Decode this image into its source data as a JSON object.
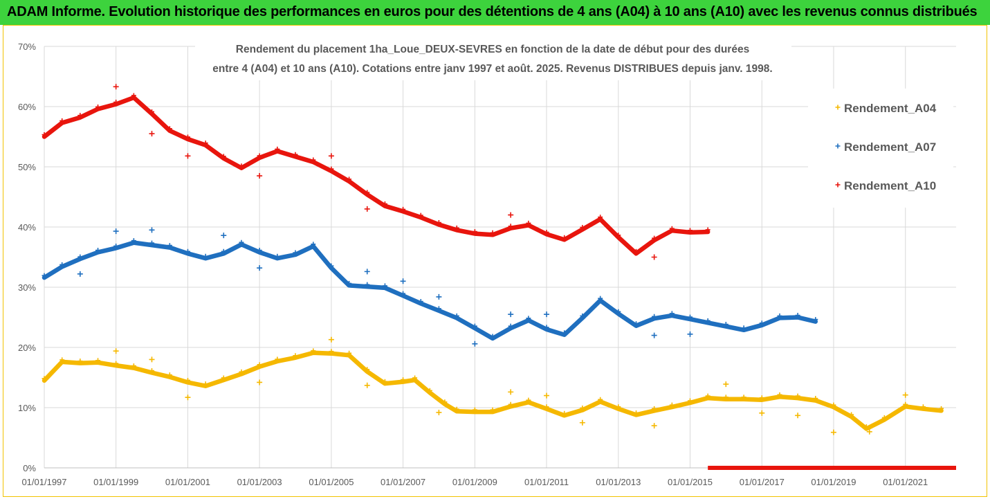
{
  "banner": {
    "title": "ADAM Informe. Evolution historique des performances en euros pour des détentions de 4 ans (A04) à 10 ans (A10) avec les revenus connus distribués"
  },
  "colors": {
    "banner": "#3dd33d",
    "frame": "#f2c200",
    "a04": "#f5b800",
    "a07": "#1f6fbf",
    "a10": "#e8150d",
    "grid": "#d9d9d9"
  },
  "chart_data": {
    "type": "scatter",
    "title": "Rendement du placement 1ha_Loue_DEUX-SEVRES en fonction de la date de début pour des durées",
    "subtitle": "entre 4 (A04) et 10 ans (A10). Cotations entre janv 1997 et août. 2025. Revenus DISTRIBUES depuis janv. 1998.",
    "xlabel": "",
    "ylabel": "",
    "x_unit": "date",
    "xlim": [
      "1997-01-01",
      "2022-06-01"
    ],
    "ylim": [
      0,
      70
    ],
    "y_ticks": [
      0,
      10,
      20,
      30,
      40,
      50,
      60,
      70
    ],
    "y_tick_labels": [
      "0%",
      "10%",
      "20%",
      "30%",
      "40%",
      "50%",
      "60%",
      "70%"
    ],
    "x_ticks": [
      "1997-01-01",
      "1999-01-01",
      "2001-01-01",
      "2003-01-01",
      "2005-01-01",
      "2007-01-01",
      "2009-01-01",
      "2011-01-01",
      "2013-01-01",
      "2015-01-01",
      "2017-01-01",
      "2019-01-01",
      "2021-01-01"
    ],
    "x_tick_labels": [
      "01/01/1997",
      "01/01/1999",
      "01/01/2001",
      "01/01/2003",
      "01/01/2005",
      "01/01/2007",
      "01/01/2009",
      "01/01/2011",
      "01/01/2013",
      "01/01/2015",
      "01/01/2017",
      "01/01/2019",
      "01/01/2021"
    ],
    "grid": true,
    "legend_position": "right",
    "series": [
      {
        "name": "Rendement_A04",
        "color": "#f5b800",
        "points": [
          [
            "1997-01-01",
            14.5
          ],
          [
            "1997-07-01",
            17.6
          ],
          [
            "1998-01-01",
            17.4
          ],
          [
            "1998-07-01",
            17.5
          ],
          [
            "1999-01-01",
            17.0
          ],
          [
            "1999-07-01",
            16.6
          ],
          [
            "2000-01-01",
            15.8
          ],
          [
            "2000-07-01",
            15.1
          ],
          [
            "2001-01-01",
            14.2
          ],
          [
            "2001-07-01",
            13.6
          ],
          [
            "2002-01-01",
            14.6
          ],
          [
            "2002-07-01",
            15.6
          ],
          [
            "2003-01-01",
            16.8
          ],
          [
            "2003-07-01",
            17.7
          ],
          [
            "2004-01-01",
            18.3
          ],
          [
            "2004-07-01",
            19.1
          ],
          [
            "2005-01-01",
            19.0
          ],
          [
            "2005-07-01",
            18.7
          ],
          [
            "2006-01-01",
            16.0
          ],
          [
            "2006-07-01",
            14.0
          ],
          [
            "2007-01-01",
            14.3
          ],
          [
            "2007-05-01",
            14.6
          ],
          [
            "2007-10-01",
            12.5
          ],
          [
            "2008-03-01",
            10.6
          ],
          [
            "2008-07-01",
            9.4
          ],
          [
            "2009-01-01",
            9.3
          ],
          [
            "2009-07-01",
            9.3
          ],
          [
            "2010-01-01",
            10.2
          ],
          [
            "2010-07-01",
            10.9
          ],
          [
            "2011-01-01",
            9.8
          ],
          [
            "2011-07-01",
            8.7
          ],
          [
            "2012-01-01",
            9.6
          ],
          [
            "2012-07-01",
            11.0
          ],
          [
            "2013-01-01",
            9.8
          ],
          [
            "2013-07-01",
            8.8
          ],
          [
            "2014-01-01",
            9.5
          ],
          [
            "2014-07-01",
            10.1
          ],
          [
            "2015-01-01",
            10.8
          ],
          [
            "2015-07-01",
            11.6
          ],
          [
            "2016-01-01",
            11.4
          ],
          [
            "2016-07-01",
            11.4
          ],
          [
            "2017-01-01",
            11.3
          ],
          [
            "2017-07-01",
            11.8
          ],
          [
            "2018-01-01",
            11.6
          ],
          [
            "2018-07-01",
            11.2
          ],
          [
            "2019-01-01",
            10.1
          ],
          [
            "2019-07-01",
            8.5
          ],
          [
            "2019-12-01",
            6.5
          ],
          [
            "2020-06-01",
            8.0
          ],
          [
            "2021-01-01",
            10.2
          ],
          [
            "2021-07-01",
            9.8
          ],
          [
            "2022-01-01",
            9.5
          ]
        ],
        "outliers": [
          [
            "1999-01-01",
            19.4
          ],
          [
            "2000-01-01",
            18.0
          ],
          [
            "2001-01-01",
            11.7
          ],
          [
            "2003-01-01",
            14.2
          ],
          [
            "2005-01-01",
            21.3
          ],
          [
            "2006-01-01",
            13.7
          ],
          [
            "2008-01-01",
            9.2
          ],
          [
            "2010-01-01",
            12.6
          ],
          [
            "2011-01-01",
            12.0
          ],
          [
            "2012-01-01",
            7.5
          ],
          [
            "2014-01-01",
            7.0
          ],
          [
            "2016-01-01",
            13.9
          ],
          [
            "2017-01-01",
            9.1
          ],
          [
            "2018-01-01",
            8.7
          ],
          [
            "2019-01-01",
            5.9
          ],
          [
            "2020-01-01",
            6.0
          ],
          [
            "2021-01-01",
            12.1
          ]
        ]
      },
      {
        "name": "Rendement_A07",
        "color": "#1f6fbf",
        "points": [
          [
            "1997-01-01",
            31.6
          ],
          [
            "1997-07-01",
            33.4
          ],
          [
            "1998-01-01",
            34.7
          ],
          [
            "1998-07-01",
            35.8
          ],
          [
            "1999-01-01",
            36.5
          ],
          [
            "1999-07-01",
            37.4
          ],
          [
            "2000-01-01",
            37.0
          ],
          [
            "2000-07-01",
            36.6
          ],
          [
            "2001-01-01",
            35.6
          ],
          [
            "2001-07-01",
            34.8
          ],
          [
            "2002-01-01",
            35.6
          ],
          [
            "2002-07-01",
            37.1
          ],
          [
            "2003-01-01",
            35.8
          ],
          [
            "2003-07-01",
            34.8
          ],
          [
            "2004-01-01",
            35.4
          ],
          [
            "2004-07-01",
            36.8
          ],
          [
            "2005-01-01",
            33.2
          ],
          [
            "2005-07-01",
            30.3
          ],
          [
            "2006-01-01",
            30.1
          ],
          [
            "2006-07-01",
            29.9
          ],
          [
            "2007-01-01",
            28.6
          ],
          [
            "2007-07-01",
            27.3
          ],
          [
            "2008-01-01",
            26.1
          ],
          [
            "2008-07-01",
            24.9
          ],
          [
            "2009-01-01",
            23.2
          ],
          [
            "2009-07-01",
            21.5
          ],
          [
            "2010-01-01",
            23.2
          ],
          [
            "2010-07-01",
            24.5
          ],
          [
            "2011-01-01",
            23.0
          ],
          [
            "2011-07-01",
            22.1
          ],
          [
            "2012-01-01",
            24.9
          ],
          [
            "2012-07-01",
            27.8
          ],
          [
            "2013-01-01",
            25.6
          ],
          [
            "2013-07-01",
            23.6
          ],
          [
            "2014-01-01",
            24.8
          ],
          [
            "2014-07-01",
            25.3
          ],
          [
            "2015-01-01",
            24.7
          ],
          [
            "2015-07-01",
            24.1
          ],
          [
            "2016-01-01",
            23.5
          ],
          [
            "2016-07-01",
            22.9
          ],
          [
            "2017-01-01",
            23.7
          ],
          [
            "2017-07-01",
            24.9
          ],
          [
            "2018-01-01",
            25.0
          ],
          [
            "2018-07-01",
            24.3
          ]
        ],
        "outliers": [
          [
            "1998-01-01",
            32.2
          ],
          [
            "1999-01-01",
            39.3
          ],
          [
            "2000-01-01",
            39.5
          ],
          [
            "2002-01-01",
            38.6
          ],
          [
            "2003-01-01",
            33.2
          ],
          [
            "2006-01-01",
            32.6
          ],
          [
            "2007-01-01",
            31.0
          ],
          [
            "2008-01-01",
            28.4
          ],
          [
            "2009-01-01",
            20.6
          ],
          [
            "2010-01-01",
            25.5
          ],
          [
            "2011-01-01",
            25.5
          ],
          [
            "2014-01-01",
            22.0
          ],
          [
            "2015-01-01",
            22.2
          ]
        ]
      },
      {
        "name": "Rendement_A10",
        "color": "#e8150d",
        "points": [
          [
            "1997-01-01",
            55.0
          ],
          [
            "1997-07-01",
            57.3
          ],
          [
            "1998-01-01",
            58.2
          ],
          [
            "1998-07-01",
            59.6
          ],
          [
            "1999-01-01",
            60.4
          ],
          [
            "1999-07-01",
            61.5
          ],
          [
            "2000-01-01",
            58.8
          ],
          [
            "2000-07-01",
            56.0
          ],
          [
            "2001-01-01",
            54.6
          ],
          [
            "2001-07-01",
            53.6
          ],
          [
            "2002-01-01",
            51.4
          ],
          [
            "2002-07-01",
            49.8
          ],
          [
            "2003-01-01",
            51.5
          ],
          [
            "2003-07-01",
            52.6
          ],
          [
            "2004-01-01",
            51.7
          ],
          [
            "2004-07-01",
            50.8
          ],
          [
            "2005-01-01",
            49.3
          ],
          [
            "2005-07-01",
            47.6
          ],
          [
            "2006-01-01",
            45.4
          ],
          [
            "2006-07-01",
            43.5
          ],
          [
            "2007-01-01",
            42.6
          ],
          [
            "2007-07-01",
            41.6
          ],
          [
            "2008-01-01",
            40.4
          ],
          [
            "2008-07-01",
            39.5
          ],
          [
            "2009-01-01",
            38.9
          ],
          [
            "2009-07-01",
            38.7
          ],
          [
            "2010-01-01",
            39.8
          ],
          [
            "2010-07-01",
            40.3
          ],
          [
            "2011-01-01",
            38.8
          ],
          [
            "2011-07-01",
            37.9
          ],
          [
            "2012-01-01",
            39.6
          ],
          [
            "2012-07-01",
            41.3
          ],
          [
            "2013-01-01",
            38.3
          ],
          [
            "2013-07-01",
            35.6
          ],
          [
            "2014-01-01",
            37.8
          ],
          [
            "2014-07-01",
            39.4
          ],
          [
            "2015-01-01",
            39.1
          ],
          [
            "2015-07-01",
            39.2
          ]
        ],
        "outliers": [
          [
            "1999-01-01",
            63.3
          ],
          [
            "2000-01-01",
            55.5
          ],
          [
            "2001-01-01",
            51.8
          ],
          [
            "2003-01-01",
            48.5
          ],
          [
            "2005-01-01",
            51.8
          ],
          [
            "2006-01-01",
            43.0
          ],
          [
            "2010-01-01",
            42.0
          ],
          [
            "2014-01-01",
            35.0
          ]
        ],
        "zero_segment": {
          "start": "2015-07-01",
          "end": "2022-06-01",
          "value": 0
        }
      }
    ]
  }
}
